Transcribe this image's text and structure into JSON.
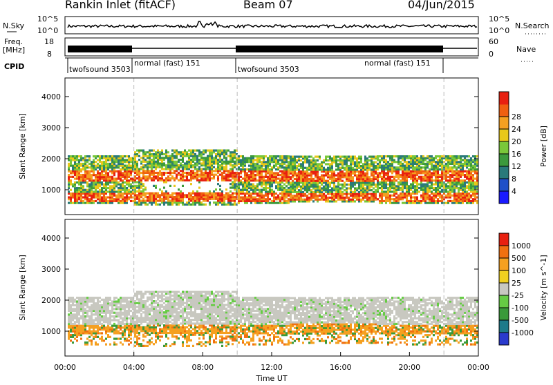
{
  "header": {
    "title": "Rankin Inlet (fitACF)",
    "beam": "Beam 07",
    "date": "04/Jun/2015"
  },
  "nsky_panel": {
    "left_label": "N.Sky",
    "right_label": "N.Search",
    "ticks": [
      "10^5",
      "10^0"
    ]
  },
  "freq_panel": {
    "left_label_1": "Freq.",
    "left_label_2": "[MHz]",
    "right_label": "Nave",
    "left_ticks": [
      "18",
      "8"
    ],
    "right_ticks": [
      "60",
      "0"
    ]
  },
  "cpid_panel": {
    "label": "CPID",
    "segments": [
      {
        "name": "twofsound 3503",
        "start_h": 0.0,
        "end_h": 4.0
      },
      {
        "name": "normal (fast) 151",
        "start_h": 4.0,
        "end_h": 10.0
      },
      {
        "name": "twofsound 3503",
        "start_h": 10.0,
        "end_h": 22.0
      },
      {
        "name": "normal (fast) 151",
        "start_h": 16.5,
        "end_h": 22.0
      }
    ]
  },
  "chart_data": [
    {
      "type": "heatmap",
      "ylabel": "Slant Range [km]",
      "yticks": [
        "1000",
        "2000",
        "3000",
        "4000"
      ],
      "ylim": [
        200,
        4600
      ],
      "xlim": [
        0,
        24
      ],
      "colorbar": {
        "label": "Power [dB]",
        "ticks": [
          "4",
          "8",
          "12",
          "16",
          "20",
          "24",
          "28"
        ],
        "colors": [
          "#1a1aff",
          "#2050c8",
          "#2a7a7a",
          "#3c9a3c",
          "#7ac83a",
          "#e8c81a",
          "#f5a020",
          "#f06010",
          "#e82010"
        ]
      },
      "bands_km": [
        {
          "from_h": 0.0,
          "to_h": 4.0,
          "low": 600,
          "high": 2000
        },
        {
          "from_h": 4.0,
          "to_h": 10.0,
          "low": 500,
          "high": 2300
        },
        {
          "from_h": 10.0,
          "to_h": 24.0,
          "low": 500,
          "high": 2200
        }
      ]
    },
    {
      "type": "heatmap",
      "ylabel": "Slant Range [km]",
      "yticks": [
        "1000",
        "2000",
        "3000",
        "4000"
      ],
      "ylim": [
        200,
        4600
      ],
      "xlim": [
        0,
        24
      ],
      "xticks": [
        "00:00",
        "04:00",
        "08:00",
        "12:00",
        "16:00",
        "20:00",
        "00:00"
      ],
      "xlabel": "Time UT",
      "colorbar": {
        "label": "Velocity [m s^-1]",
        "ticks": [
          "1000",
          "500",
          "100",
          "25",
          "-25",
          "-100",
          "-500",
          "-1000"
        ],
        "colors": [
          "#2a3acd",
          "#1e7a8a",
          "#3a9a3a",
          "#66cc44",
          "#c8c8c0",
          "#f0d020",
          "#f5a020",
          "#f07010",
          "#e82010"
        ]
      }
    }
  ]
}
